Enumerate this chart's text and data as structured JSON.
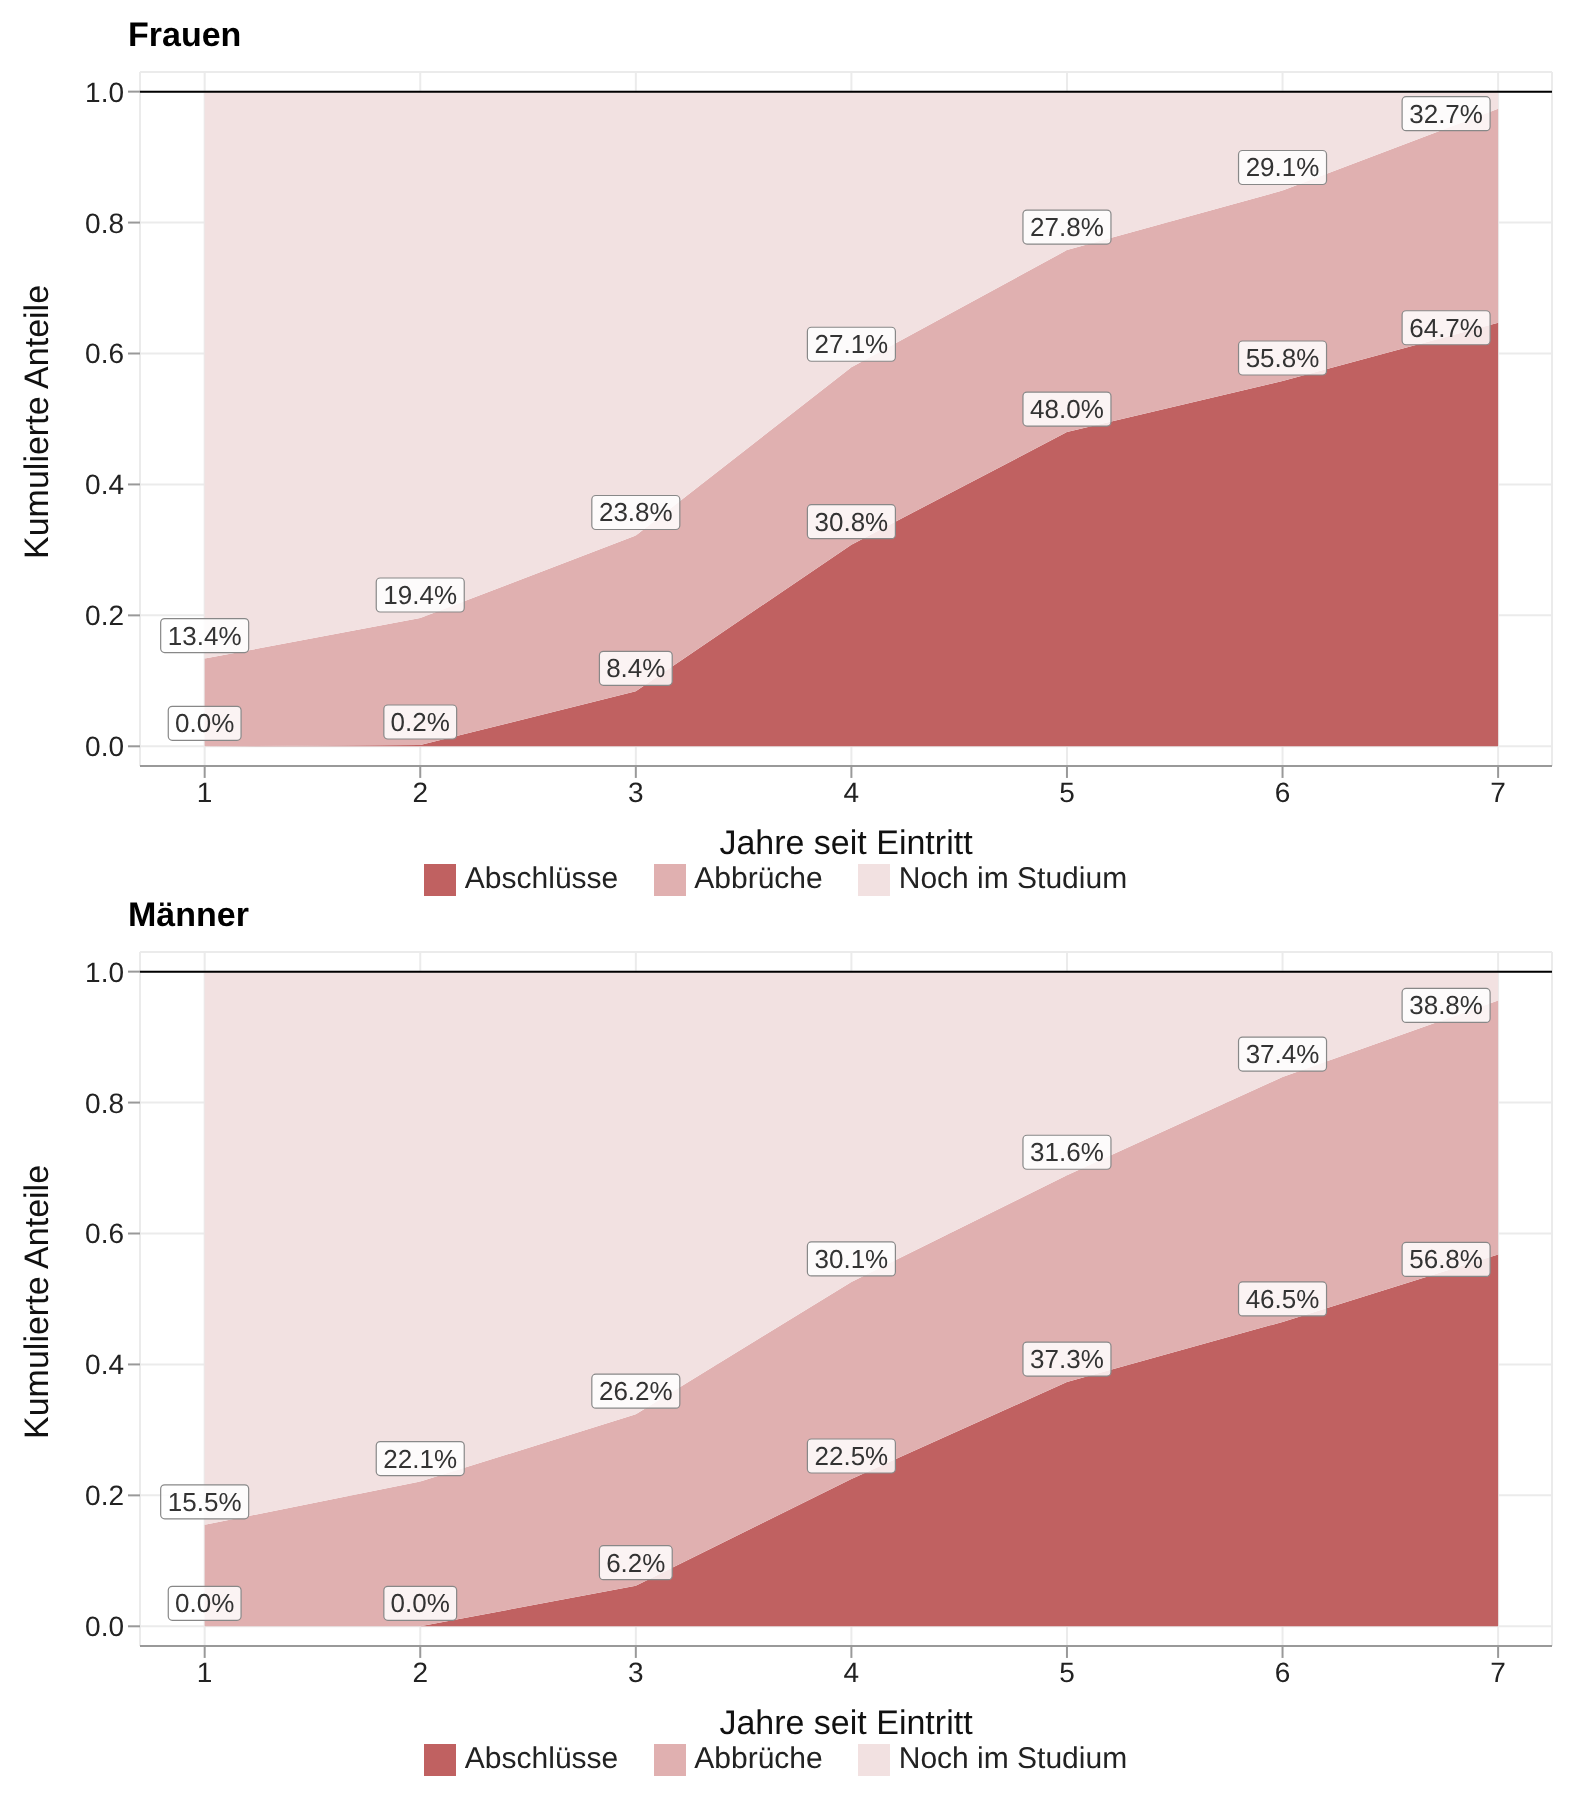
{
  "chart_data": [
    {
      "type": "area",
      "title": "Frauen",
      "xlabel": "Jahre seit Eintritt",
      "ylabel": "Kumulierte Anteile",
      "stacked": true,
      "grid": true,
      "legend": "bottom",
      "x": [
        1,
        2,
        3,
        4,
        5,
        6,
        7
      ],
      "xlim": [
        0.7,
        7.25
      ],
      "xticks": [
        1,
        2,
        3,
        4,
        5,
        6,
        7
      ],
      "ylim": [
        -0.03,
        1.03
      ],
      "yticks": [
        {
          "value": 0,
          "label": "0.0"
        },
        {
          "value": 0.2,
          "label": "0.2"
        },
        {
          "value": 0.4,
          "label": "0.4"
        },
        {
          "value": 0.6,
          "label": "0.6"
        },
        {
          "value": 0.8,
          "label": "0.8"
        },
        {
          "value": 1,
          "label": "1.0"
        }
      ],
      "ref_lines": [
        {
          "axis": "y",
          "value": 1,
          "color": "#000000"
        }
      ],
      "series": [
        {
          "name": "Abschlüsse",
          "color": "#c06161",
          "values": [
            0.0,
            0.002,
            0.084,
            0.308,
            0.48,
            0.558,
            0.647
          ],
          "value_labels": [
            "0.0%",
            "0.2%",
            "8.4%",
            "30.8%",
            "48.0%",
            "55.8%",
            "64.7%"
          ]
        },
        {
          "name": "Abbrüche",
          "color": "#e0b0b0",
          "values": [
            0.134,
            0.194,
            0.238,
            0.271,
            0.278,
            0.291,
            0.327
          ],
          "value_labels": [
            "13.4%",
            "19.4%",
            "23.8%",
            "27.1%",
            "27.8%",
            "29.1%",
            "32.7%"
          ]
        },
        {
          "name": "Noch im Studium",
          "color": "#f2e1e1",
          "values": [
            0.866,
            0.804,
            0.678,
            0.421,
            0.242,
            0.151,
            0.026
          ]
        }
      ]
    },
    {
      "type": "area",
      "title": "Männer",
      "xlabel": "Jahre seit Eintritt",
      "ylabel": "Kumulierte Anteile",
      "stacked": true,
      "grid": true,
      "legend": "bottom",
      "x": [
        1,
        2,
        3,
        4,
        5,
        6,
        7
      ],
      "xlim": [
        0.7,
        7.25
      ],
      "xticks": [
        1,
        2,
        3,
        4,
        5,
        6,
        7
      ],
      "ylim": [
        -0.03,
        1.03
      ],
      "yticks": [
        {
          "value": 0,
          "label": "0.0"
        },
        {
          "value": 0.2,
          "label": "0.2"
        },
        {
          "value": 0.4,
          "label": "0.4"
        },
        {
          "value": 0.6,
          "label": "0.6"
        },
        {
          "value": 0.8,
          "label": "0.8"
        },
        {
          "value": 1,
          "label": "1.0"
        }
      ],
      "ref_lines": [
        {
          "axis": "y",
          "value": 1,
          "color": "#000000"
        }
      ],
      "series": [
        {
          "name": "Abschlüsse",
          "color": "#c06161",
          "values": [
            0.0,
            0.0,
            0.062,
            0.225,
            0.373,
            0.465,
            0.568
          ],
          "value_labels": [
            "0.0%",
            "0.0%",
            "6.2%",
            "22.5%",
            "37.3%",
            "46.5%",
            "56.8%"
          ]
        },
        {
          "name": "Abbrüche",
          "color": "#e0b0b0",
          "values": [
            0.155,
            0.221,
            0.262,
            0.301,
            0.316,
            0.374,
            0.388
          ],
          "value_labels": [
            "15.5%",
            "22.1%",
            "26.2%",
            "30.1%",
            "31.6%",
            "37.4%",
            "38.8%"
          ]
        },
        {
          "name": "Noch im Studium",
          "color": "#f2e1e1",
          "values": [
            0.845,
            0.779,
            0.676,
            0.474,
            0.311,
            0.161,
            0.044
          ]
        }
      ]
    }
  ]
}
